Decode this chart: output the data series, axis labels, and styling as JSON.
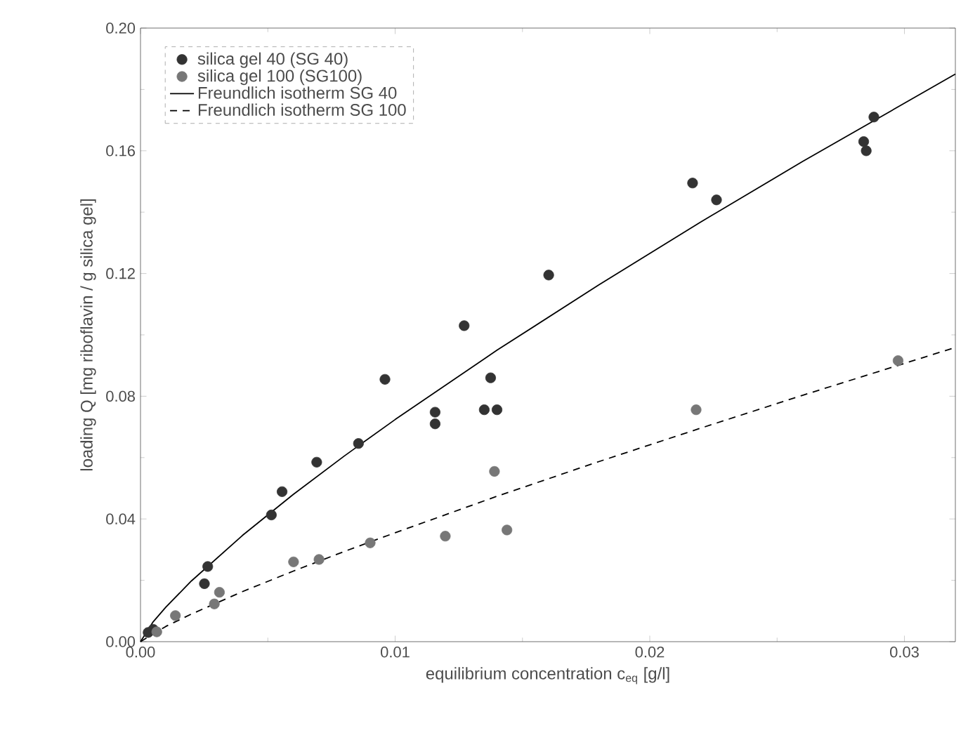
{
  "chart_data": {
    "type": "scatter",
    "xlabel": "equilibrium concentration c$_{eq}$ [g/l]",
    "ylabel": "loading Q [mg riboflavin / g silica gel]",
    "xlim": [
      0,
      0.032
    ],
    "ylim": [
      0,
      0.2
    ],
    "xticks": [
      {
        "value": 0,
        "label": "0.00"
      },
      {
        "value": 0.01,
        "label": "0.01"
      },
      {
        "value": 0.02,
        "label": "0.02"
      },
      {
        "value": 0.03,
        "label": "0.03"
      }
    ],
    "yticks": [
      {
        "value": 0,
        "label": "0.00"
      },
      {
        "value": 0.04,
        "label": "0.04"
      },
      {
        "value": 0.08,
        "label": "0.08"
      },
      {
        "value": 0.12,
        "label": "0.12"
      },
      {
        "value": 0.16,
        "label": "0.16"
      },
      {
        "value": 0.2,
        "label": "0.20"
      }
    ],
    "legend": "top left",
    "series": [
      {
        "name": "silica gel 40 (SG 40)",
        "color": "#333333",
        "marker": "circle",
        "x": [
          0.0003,
          0.0005,
          0.00251,
          0.00264,
          0.00514,
          0.00556,
          0.00692,
          0.00856,
          0.0096,
          0.01157,
          0.01157,
          0.01271,
          0.0135,
          0.014,
          0.01375,
          0.01603,
          0.02168,
          0.02262,
          0.0284,
          0.0285,
          0.0288
        ],
        "values": [
          0.003,
          0.004,
          0.0189,
          0.0245,
          0.0413,
          0.0489,
          0.0585,
          0.0646,
          0.0855,
          0.071,
          0.0748,
          0.103,
          0.0756,
          0.0756,
          0.086,
          0.1195,
          0.1495,
          0.144,
          0.163,
          0.16,
          0.171
        ]
      },
      {
        "name": "silica gel 100 (SG100)",
        "color": "#777777",
        "marker": "circle",
        "x": [
          0.00064,
          0.00137,
          0.0029,
          0.0031,
          0.00601,
          0.00701,
          0.00902,
          0.01197,
          0.0139,
          0.01439,
          0.02182,
          0.02975
        ],
        "values": [
          0.0032,
          0.0085,
          0.0123,
          0.0161,
          0.026,
          0.0268,
          0.0322,
          0.0344,
          0.0555,
          0.0364,
          0.0756,
          0.0916
        ]
      },
      {
        "name": "Freundlich isotherm SG 40",
        "type": "line",
        "color": "#000000",
        "line_style": "solid",
        "marker": "none",
        "x": [
          0,
          0.0005,
          0.001,
          0.002,
          0.004,
          0.006,
          0.008,
          0.01,
          0.014,
          0.018,
          0.022,
          0.026,
          0.032
        ],
        "values": [
          0,
          0.0065,
          0.0113,
          0.0198,
          0.0346,
          0.048,
          0.0605,
          0.0724,
          0.095,
          0.1163,
          0.1368,
          0.1565,
          0.185
        ]
      },
      {
        "name": "Freundlich isotherm SG 100",
        "type": "line",
        "color": "#000000",
        "line_style": "dashed",
        "marker": "none",
        "x": [
          0,
          0.001,
          0.002,
          0.004,
          0.006,
          0.008,
          0.01,
          0.014,
          0.018,
          0.022,
          0.026,
          0.032
        ],
        "values": [
          0,
          0.005,
          0.009,
          0.0163,
          0.023,
          0.0294,
          0.0355,
          0.0474,
          0.0587,
          0.0696,
          0.0803,
          0.0959
        ]
      }
    ]
  }
}
